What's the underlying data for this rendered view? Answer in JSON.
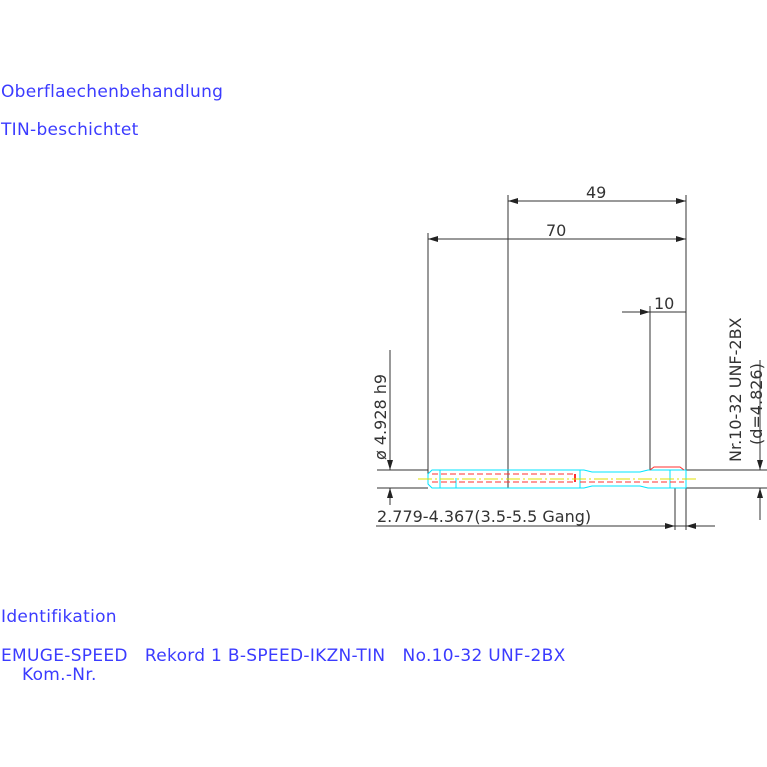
{
  "surface": {
    "label": "Oberflaechenbehandlung",
    "value": "TIN-beschichtet"
  },
  "identification": {
    "label": "Identifikation",
    "line1": "EMUGE-SPEED   Rekord 1 B-SPEED-IKZN-TIN   No.10-32 UNF-2BX",
    "line2": "Kom.-Nr."
  },
  "dimensions": {
    "length_49": "49",
    "length_70": "70",
    "length_10": "10",
    "shank_diameter": "ø 4.928 h9",
    "thread": "Nr.10-32 UNF-2BX",
    "thread_d": "(d=4.826)",
    "drill_range": "2.779-4.367(3.5-5.5 Gang)"
  },
  "colors": {
    "text": "#3b3bff",
    "dim": "#333333",
    "outline": "#00e5ff",
    "hidden": "#ff3030",
    "center": "#e0e000"
  }
}
